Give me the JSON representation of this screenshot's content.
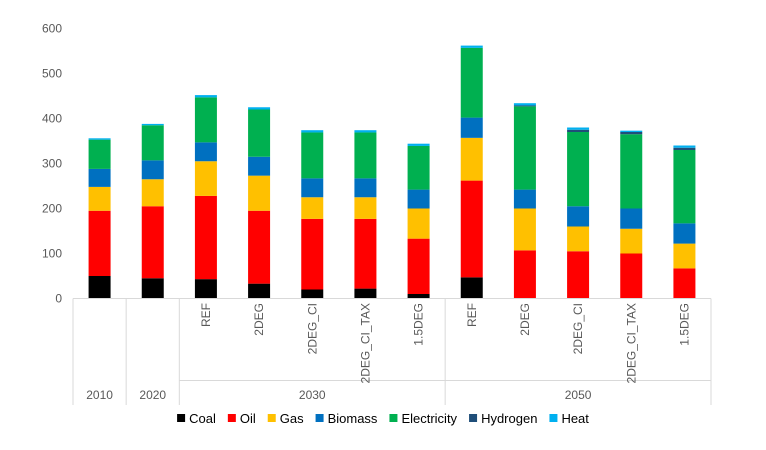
{
  "chart_data": {
    "type": "bar",
    "stacked": true,
    "title": "",
    "xlabel": "",
    "ylabel": "",
    "ylim": [
      0,
      600
    ],
    "yticks": [
      0,
      100,
      200,
      300,
      400,
      500,
      600
    ],
    "grid": false,
    "legend_position": "bottom",
    "categories": [
      {
        "group": "2010",
        "label": ""
      },
      {
        "group": "2020",
        "label": ""
      },
      {
        "group": "2030",
        "label": "REF"
      },
      {
        "group": "2030",
        "label": "2DEG"
      },
      {
        "group": "2030",
        "label": "2DEG_CI"
      },
      {
        "group": "2030",
        "label": "2DEG_CI_TAX"
      },
      {
        "group": "2030",
        "label": "1.5DEG"
      },
      {
        "group": "2050",
        "label": "REF"
      },
      {
        "group": "2050",
        "label": "2DEG"
      },
      {
        "group": "2050",
        "label": "2DEG_CI"
      },
      {
        "group": "2050",
        "label": "2DEG_CI_TAX"
      },
      {
        "group": "2050",
        "label": "1.5DEG"
      }
    ],
    "groups": [
      "2010",
      "2020",
      "2030",
      "2050"
    ],
    "series": [
      {
        "name": "Coal",
        "color": "#000000",
        "values": [
          50,
          45,
          43,
          33,
          20,
          22,
          10,
          47,
          0,
          0,
          0,
          0
        ]
      },
      {
        "name": "Oil",
        "color": "#ff0000",
        "values": [
          145,
          160,
          185,
          162,
          157,
          155,
          123,
          215,
          107,
          105,
          100,
          67
        ]
      },
      {
        "name": "Gas",
        "color": "#ffc000",
        "values": [
          53,
          60,
          77,
          78,
          48,
          48,
          67,
          95,
          93,
          55,
          55,
          55
        ]
      },
      {
        "name": "Biomass",
        "color": "#0070c0",
        "values": [
          40,
          42,
          42,
          42,
          42,
          42,
          42,
          45,
          42,
          45,
          45,
          45
        ]
      },
      {
        "name": "Electricity",
        "color": "#00b050",
        "values": [
          65,
          78,
          100,
          105,
          102,
          102,
          97,
          155,
          185,
          165,
          165,
          163
        ]
      },
      {
        "name": "Hydrogen",
        "color": "#1f4e79",
        "values": [
          0,
          0,
          0,
          0,
          0,
          0,
          0,
          0,
          2,
          5,
          5,
          5
        ]
      },
      {
        "name": "Heat",
        "color": "#00b0f0",
        "values": [
          3,
          3,
          5,
          5,
          5,
          5,
          5,
          5,
          5,
          5,
          3,
          5
        ]
      }
    ]
  }
}
